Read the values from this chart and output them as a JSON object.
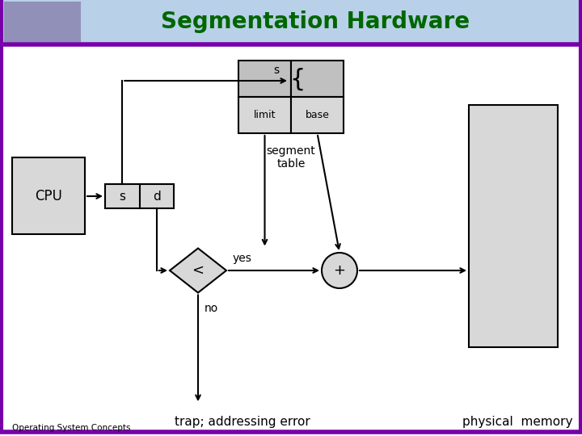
{
  "title": "Segmentation Hardware",
  "title_color": "#006600",
  "title_fontsize": 20,
  "header_bg": "#b8d0e8",
  "border_color": "#7700aa",
  "bg_color": "#ffffff",
  "box_fill": "#d8d8d8",
  "box_fill_dark": "#c0c0c0",
  "box_edge": "#000000",
  "bottom_left_text": "Operating System Concepts",
  "bottom_center_text": "trap; addressing error",
  "bottom_right_text": "physical  memory",
  "cpu_label": "CPU",
  "sd_s_label": "s",
  "sd_d_label": "d",
  "limit_label": "limit",
  "base_label": "base",
  "seg_table_label": "segment\ntable",
  "less_label": "<",
  "plus_label": "+",
  "yes_label": "yes",
  "no_label": "no",
  "s_label": "s"
}
